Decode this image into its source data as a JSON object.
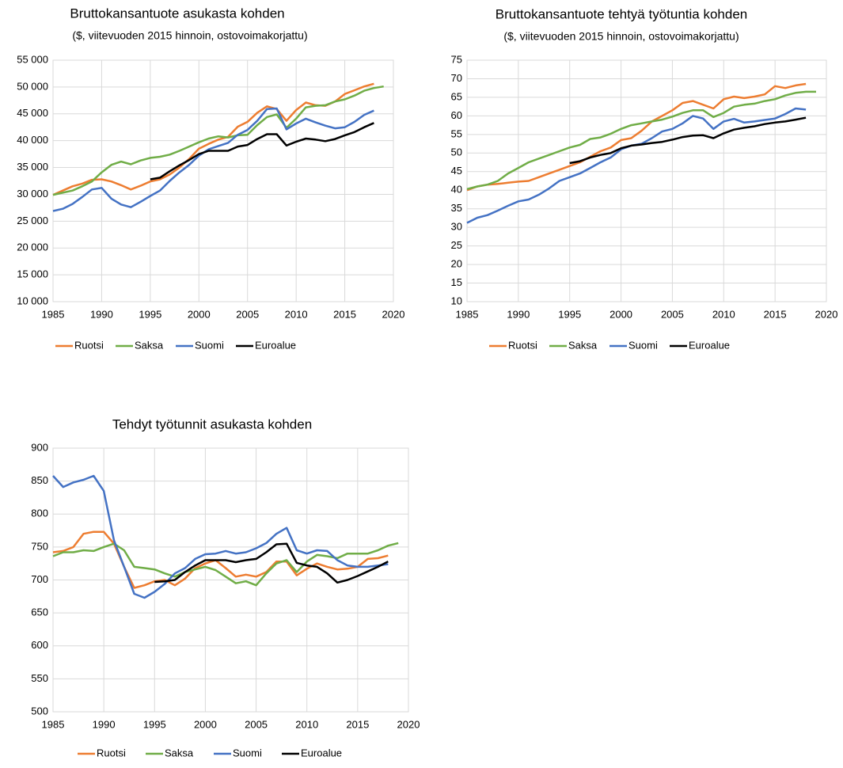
{
  "chart_data": [
    {
      "type": "line",
      "title": "Bruttokansantuote asukasta kohden",
      "subtitle": "($, viitevuoden 2015 hinnoin, ostovoimakorjattu)",
      "x": [
        1985,
        1986,
        1987,
        1988,
        1989,
        1990,
        1991,
        1992,
        1993,
        1994,
        1995,
        1996,
        1997,
        1998,
        1999,
        2000,
        2001,
        2002,
        2003,
        2004,
        2005,
        2006,
        2007,
        2008,
        2009,
        2010,
        2011,
        2012,
        2013,
        2014,
        2015,
        2016,
        2017,
        2018,
        2019
      ],
      "series": [
        {
          "name": "Ruotsi",
          "color": "#ed7d31",
          "values": [
            29900,
            30700,
            31500,
            32000,
            32700,
            32800,
            32400,
            31700,
            30900,
            31600,
            32400,
            32800,
            33700,
            35000,
            36600,
            38500,
            39400,
            40200,
            40700,
            42600,
            43500,
            45200,
            46400,
            45900,
            43700,
            45700,
            47100,
            46600,
            46500,
            47300,
            48700,
            49400,
            50100,
            50600,
            null
          ]
        },
        {
          "name": "Saksa",
          "color": "#70ad47",
          "values": [
            29900,
            30300,
            30700,
            31500,
            32400,
            34100,
            35500,
            36100,
            35600,
            36300,
            36800,
            37000,
            37400,
            38100,
            38900,
            39700,
            40400,
            40800,
            40600,
            41000,
            41100,
            42900,
            44400,
            44900,
            42400,
            44100,
            46200,
            46500,
            46600,
            47300,
            47700,
            48400,
            49300,
            49800,
            50100
          ]
        },
        {
          "name": "Suomi",
          "color": "#4472c4",
          "values": [
            26900,
            27300,
            28200,
            29500,
            30900,
            31200,
            29200,
            28100,
            27600,
            28600,
            29700,
            30700,
            32500,
            34100,
            35500,
            37200,
            38400,
            39000,
            39600,
            41100,
            42000,
            43700,
            45900,
            46000,
            42100,
            43200,
            44100,
            43400,
            42800,
            42300,
            42500,
            43500,
            44800,
            45600,
            null
          ]
        },
        {
          "name": "Euroalue",
          "color": "#000000",
          "values": [
            null,
            null,
            null,
            null,
            null,
            null,
            null,
            null,
            null,
            null,
            32800,
            33100,
            34300,
            35400,
            36400,
            37500,
            38100,
            38100,
            38100,
            38900,
            39200,
            40300,
            41200,
            41200,
            39100,
            39800,
            40400,
            40200,
            39900,
            40300,
            41000,
            41600,
            42500,
            43300,
            null
          ]
        }
      ],
      "xlim": [
        1985,
        2020
      ],
      "xticks": [
        1985,
        1990,
        1995,
        2000,
        2005,
        2010,
        2015,
        2020
      ],
      "ylim": [
        10000,
        55000
      ],
      "yticks": [
        {
          "value": 10000,
          "label": "10 000"
        },
        {
          "value": 15000,
          "label": "15 000"
        },
        {
          "value": 20000,
          "label": "20 000"
        },
        {
          "value": 25000,
          "label": "25 000"
        },
        {
          "value": 30000,
          "label": "30 000"
        },
        {
          "value": 35000,
          "label": "35 000"
        },
        {
          "value": 40000,
          "label": "40 000"
        },
        {
          "value": 45000,
          "label": "45 000"
        },
        {
          "value": 50000,
          "label": "50 000"
        },
        {
          "value": 55000,
          "label": "55 000"
        }
      ],
      "grid": true,
      "legend": "bottom"
    },
    {
      "type": "line",
      "title": "Bruttokansantuote tehtyä työtuntia kohden",
      "subtitle": "($, viitevuoden 2015 hinnoin,  ostovoimakorjattu)",
      "x": [
        1985,
        1986,
        1987,
        1988,
        1989,
        1990,
        1991,
        1992,
        1993,
        1994,
        1995,
        1996,
        1997,
        1998,
        1999,
        2000,
        2001,
        2002,
        2003,
        2004,
        2005,
        2006,
        2007,
        2008,
        2009,
        2010,
        2011,
        2012,
        2013,
        2014,
        2015,
        2016,
        2017,
        2018,
        2019
      ],
      "series": [
        {
          "name": "Ruotsi",
          "color": "#ed7d31",
          "values": [
            40,
            41,
            41.5,
            41.7,
            42,
            42.3,
            42.5,
            43.5,
            44.5,
            45.5,
            46.5,
            47.5,
            49,
            50.5,
            51.5,
            53.5,
            54,
            56,
            58.5,
            60,
            61.5,
            63.5,
            64,
            63,
            62,
            64.5,
            65.2,
            64.8,
            65.2,
            65.8,
            68,
            67.5,
            68.2,
            68.6,
            null
          ]
        },
        {
          "name": "Saksa",
          "color": "#70ad47",
          "values": [
            40.3,
            41,
            41.5,
            42.5,
            44.5,
            46,
            47.5,
            48.5,
            49.5,
            50.5,
            51.5,
            52.2,
            53.8,
            54.2,
            55.2,
            56.5,
            57.5,
            58,
            58.5,
            59,
            59.8,
            60.8,
            61.5,
            61.5,
            59.7,
            60.8,
            62.5,
            63,
            63.3,
            64,
            64.5,
            65.5,
            66.2,
            66.5,
            66.5
          ]
        },
        {
          "name": "Suomi",
          "color": "#4472c4",
          "values": [
            31.2,
            32.6,
            33.3,
            34.5,
            35.8,
            37,
            37.5,
            38.8,
            40.5,
            42.5,
            43.5,
            44.5,
            46,
            47.5,
            48.8,
            51,
            52,
            52.5,
            54,
            55.8,
            56.5,
            58,
            60,
            59.3,
            56.5,
            58.5,
            59.2,
            58.2,
            58.5,
            58.9,
            59.3,
            60.5,
            62,
            61.7,
            null
          ]
        },
        {
          "name": "Euroalue",
          "color": "#000000",
          "values": [
            null,
            null,
            null,
            null,
            null,
            null,
            null,
            null,
            null,
            null,
            47.3,
            47.8,
            48.8,
            49.5,
            50,
            51.3,
            52,
            52.3,
            52.7,
            53,
            53.6,
            54.3,
            54.7,
            54.8,
            54,
            55.3,
            56.3,
            56.8,
            57.2,
            57.8,
            58.2,
            58.5,
            59,
            59.5,
            null
          ]
        }
      ],
      "xlim": [
        1985,
        2020
      ],
      "xticks": [
        1985,
        1990,
        1995,
        2000,
        2005,
        2010,
        2015,
        2020
      ],
      "ylim": [
        10,
        75
      ],
      "yticks": [
        10,
        15,
        20,
        25,
        30,
        35,
        40,
        45,
        50,
        55,
        60,
        65,
        70,
        75
      ],
      "grid": true,
      "legend": "bottom"
    },
    {
      "type": "line",
      "title": "Tehdyt työtunnit asukasta kohden",
      "x": [
        1985,
        1986,
        1987,
        1988,
        1989,
        1990,
        1991,
        1992,
        1993,
        1994,
        1995,
        1996,
        1997,
        1998,
        1999,
        2000,
        2001,
        2002,
        2003,
        2004,
        2005,
        2006,
        2007,
        2008,
        2009,
        2010,
        2011,
        2012,
        2013,
        2014,
        2015,
        2016,
        2017,
        2018,
        2019
      ],
      "series": [
        {
          "name": "Ruotsi",
          "color": "#ed7d31",
          "values": [
            742,
            744,
            750,
            770,
            773,
            773,
            755,
            720,
            688,
            692,
            698,
            700,
            692,
            702,
            718,
            725,
            730,
            718,
            705,
            708,
            705,
            712,
            728,
            728,
            707,
            717,
            725,
            720,
            716,
            717,
            720,
            732,
            733,
            737,
            null
          ]
        },
        {
          "name": "Saksa",
          "color": "#70ad47",
          "values": [
            736,
            742,
            742,
            745,
            744,
            750,
            755,
            745,
            720,
            718,
            716,
            710,
            705,
            712,
            716,
            720,
            715,
            705,
            695,
            698,
            692,
            710,
            725,
            730,
            712,
            728,
            738,
            736,
            733,
            740,
            740,
            740,
            745,
            752,
            756
          ]
        },
        {
          "name": "Suomi",
          "color": "#4472c4",
          "values": [
            858,
            841,
            848,
            852,
            858,
            835,
            760,
            720,
            679,
            673,
            682,
            694,
            710,
            718,
            732,
            739,
            740,
            744,
            740,
            742,
            748,
            756,
            770,
            779,
            745,
            740,
            745,
            744,
            730,
            722,
            720,
            720,
            722,
            724,
            null
          ]
        },
        {
          "name": "Euroalue",
          "color": "#000000",
          "values": [
            null,
            null,
            null,
            null,
            null,
            null,
            null,
            null,
            null,
            null,
            697,
            698,
            700,
            712,
            722,
            730,
            730,
            730,
            727,
            730,
            732,
            742,
            754,
            755,
            726,
            722,
            720,
            710,
            696,
            700,
            706,
            713,
            720,
            728,
            null
          ]
        }
      ],
      "xlim": [
        1985,
        2020
      ],
      "xticks": [
        1985,
        1990,
        1995,
        2000,
        2005,
        2010,
        2015,
        2020
      ],
      "ylim": [
        500,
        900
      ],
      "yticks": [
        500,
        550,
        600,
        650,
        700,
        750,
        800,
        850,
        900
      ],
      "grid": true,
      "legend": "bottom"
    }
  ]
}
